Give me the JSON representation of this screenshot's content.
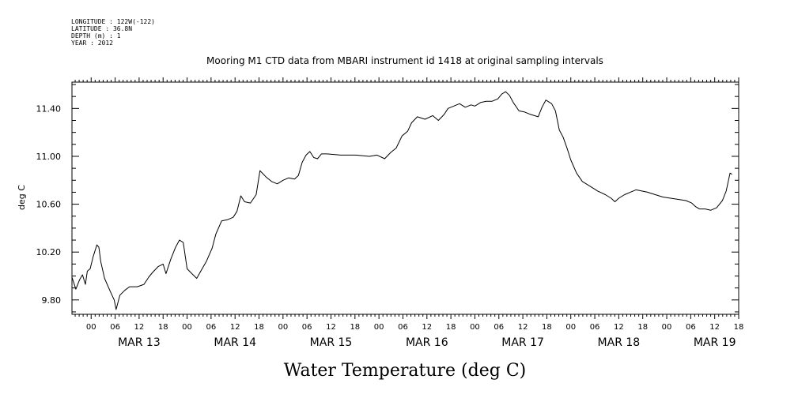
{
  "header": {
    "metadata_lines": [
      "LONGITUDE : 122W(-122)",
      "LATITUDE : 36.8N",
      "DEPTH (m) : 1",
      "YEAR : 2012"
    ],
    "title": "Mooring M1 CTD data from MBARI instrument id 1418 at original sampling intervals"
  },
  "chart_data": {
    "type": "line",
    "title": "Mooring M1 CTD data from MBARI instrument id 1418 at original sampling intervals",
    "subtitle_lines": [
      "LONGITUDE : 122W(-122)",
      "LATITUDE : 36.8N",
      "DEPTH (m) : 1",
      "YEAR : 2012"
    ],
    "xlabel": "Water Temperature (deg C)",
    "ylabel": "deg C",
    "x_unit_note": "time axis (days from MAR 12 00:00); labels shown as hour ticks and day labels",
    "xlim_days": [
      0.8,
      7.75
    ],
    "ylim": [
      9.68,
      11.62
    ],
    "yticks": [
      9.8,
      10.2,
      10.6,
      11.0,
      11.4
    ],
    "ytick_labels": [
      "9.80",
      "10.20",
      "10.60",
      "11.00",
      "11.40"
    ],
    "hour_tick_labels": [
      "00",
      "06",
      "12",
      "18",
      "00",
      "06",
      "12",
      "18",
      "00",
      "06",
      "12",
      "18",
      "00",
      "06",
      "12",
      "18",
      "00",
      "06",
      "12",
      "18",
      "00",
      "06",
      "12",
      "18",
      "00",
      "06",
      "12",
      "18"
    ],
    "day_labels": [
      "MAR 13",
      "MAR 14",
      "MAR 15",
      "MAR 16",
      "MAR 17",
      "MAR 18",
      "MAR 19"
    ],
    "series": [
      {
        "values_note": "x in days from MAR 12 00:00, y in deg C",
        "points": [
          [
            0.8,
            9.99
          ],
          [
            0.84,
            9.89
          ],
          [
            0.88,
            9.97
          ],
          [
            0.91,
            10.01
          ],
          [
            0.94,
            9.93
          ],
          [
            0.96,
            10.04
          ],
          [
            0.99,
            10.06
          ],
          [
            1.02,
            10.16
          ],
          [
            1.04,
            10.21
          ],
          [
            1.06,
            10.26
          ],
          [
            1.08,
            10.24
          ],
          [
            1.1,
            10.12
          ],
          [
            1.14,
            9.98
          ],
          [
            1.2,
            9.87
          ],
          [
            1.24,
            9.8
          ],
          [
            1.26,
            9.72
          ],
          [
            1.3,
            9.84
          ],
          [
            1.35,
            9.88
          ],
          [
            1.4,
            9.91
          ],
          [
            1.48,
            9.91
          ],
          [
            1.55,
            9.93
          ],
          [
            1.6,
            9.99
          ],
          [
            1.64,
            10.03
          ],
          [
            1.7,
            10.08
          ],
          [
            1.75,
            10.1
          ],
          [
            1.78,
            10.02
          ],
          [
            1.83,
            10.14
          ],
          [
            1.88,
            10.24
          ],
          [
            1.92,
            10.3
          ],
          [
            1.96,
            10.28
          ],
          [
            2.0,
            10.06
          ],
          [
            2.05,
            10.02
          ],
          [
            2.1,
            9.98
          ],
          [
            2.15,
            10.05
          ],
          [
            2.2,
            10.12
          ],
          [
            2.26,
            10.23
          ],
          [
            2.3,
            10.35
          ],
          [
            2.36,
            10.46
          ],
          [
            2.42,
            10.47
          ],
          [
            2.48,
            10.49
          ],
          [
            2.52,
            10.54
          ],
          [
            2.56,
            10.67
          ],
          [
            2.6,
            10.62
          ],
          [
            2.66,
            10.61
          ],
          [
            2.72,
            10.68
          ],
          [
            2.76,
            10.88
          ],
          [
            2.82,
            10.83
          ],
          [
            2.88,
            10.79
          ],
          [
            2.94,
            10.77
          ],
          [
            3.0,
            10.8
          ],
          [
            3.06,
            10.82
          ],
          [
            3.12,
            10.81
          ],
          [
            3.16,
            10.84
          ],
          [
            3.2,
            10.95
          ],
          [
            3.24,
            11.01
          ],
          [
            3.28,
            11.04
          ],
          [
            3.32,
            10.99
          ],
          [
            3.36,
            10.98
          ],
          [
            3.4,
            11.02
          ],
          [
            3.46,
            11.02
          ],
          [
            3.6,
            11.01
          ],
          [
            3.76,
            11.01
          ],
          [
            3.9,
            11.0
          ],
          [
            3.98,
            11.01
          ],
          [
            4.06,
            10.98
          ],
          [
            4.12,
            11.03
          ],
          [
            4.18,
            11.07
          ],
          [
            4.24,
            11.17
          ],
          [
            4.3,
            11.21
          ],
          [
            4.34,
            11.28
          ],
          [
            4.4,
            11.33
          ],
          [
            4.48,
            11.31
          ],
          [
            4.56,
            11.34
          ],
          [
            4.62,
            11.3
          ],
          [
            4.68,
            11.35
          ],
          [
            4.72,
            11.4
          ],
          [
            4.78,
            11.42
          ],
          [
            4.84,
            11.44
          ],
          [
            4.9,
            11.41
          ],
          [
            4.96,
            11.43
          ],
          [
            5.0,
            11.42
          ],
          [
            5.06,
            11.45
          ],
          [
            5.12,
            11.46
          ],
          [
            5.18,
            11.46
          ],
          [
            5.24,
            11.48
          ],
          [
            5.28,
            11.52
          ],
          [
            5.32,
            11.54
          ],
          [
            5.36,
            11.51
          ],
          [
            5.4,
            11.45
          ],
          [
            5.46,
            11.38
          ],
          [
            5.52,
            11.37
          ],
          [
            5.58,
            11.35
          ],
          [
            5.62,
            11.34
          ],
          [
            5.66,
            11.33
          ],
          [
            5.7,
            11.41
          ],
          [
            5.74,
            11.47
          ],
          [
            5.8,
            11.44
          ],
          [
            5.84,
            11.38
          ],
          [
            5.88,
            11.22
          ],
          [
            5.92,
            11.16
          ],
          [
            5.96,
            11.07
          ],
          [
            6.0,
            10.97
          ],
          [
            6.06,
            10.86
          ],
          [
            6.12,
            10.79
          ],
          [
            6.2,
            10.75
          ],
          [
            6.28,
            10.71
          ],
          [
            6.36,
            10.68
          ],
          [
            6.42,
            10.65
          ],
          [
            6.46,
            10.62
          ],
          [
            6.5,
            10.65
          ],
          [
            6.56,
            10.68
          ],
          [
            6.62,
            10.7
          ],
          [
            6.68,
            10.72
          ],
          [
            6.74,
            10.71
          ],
          [
            6.8,
            10.7
          ],
          [
            6.88,
            10.68
          ],
          [
            6.96,
            10.66
          ],
          [
            7.04,
            10.65
          ],
          [
            7.12,
            10.64
          ],
          [
            7.2,
            10.63
          ],
          [
            7.26,
            10.61
          ],
          [
            7.3,
            10.58
          ],
          [
            7.34,
            10.56
          ],
          [
            7.4,
            10.56
          ],
          [
            7.46,
            10.55
          ],
          [
            7.52,
            10.57
          ],
          [
            7.58,
            10.63
          ],
          [
            7.62,
            10.71
          ],
          [
            7.66,
            10.86
          ],
          [
            7.68,
            10.85
          ]
        ]
      }
    ]
  }
}
